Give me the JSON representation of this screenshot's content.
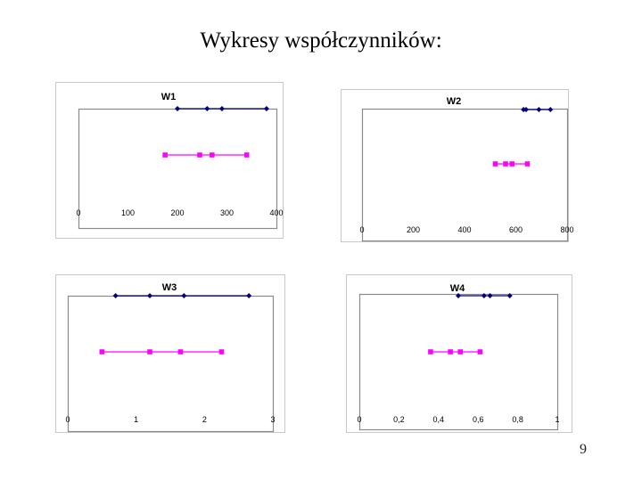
{
  "slide": {
    "title": "Wykresy współczynników:",
    "page_number": "9"
  },
  "colors": {
    "series_top": "#000080",
    "series_bottom": "#ff00ff"
  },
  "chart_data": [
    {
      "id": "p1",
      "type": "scatter",
      "title": "W1",
      "xlim": [
        0,
        400
      ],
      "ticks": [
        0,
        100,
        200,
        300,
        400
      ],
      "tick_labels": [
        "0",
        "100",
        "200",
        "300",
        "400"
      ],
      "grid": false,
      "legend": "none",
      "series": [
        {
          "marker": "diamond",
          "color": "#000080",
          "x": [
            200,
            260,
            290,
            380
          ],
          "y": [
            2,
            2,
            2,
            2
          ]
        },
        {
          "marker": "square",
          "color": "#ff00ff",
          "x": [
            175,
            245,
            270,
            340
          ],
          "y": [
            1,
            1,
            1,
            1
          ]
        }
      ]
    },
    {
      "id": "p2",
      "type": "scatter",
      "title": "W2",
      "xlim": [
        0,
        800
      ],
      "ticks": [
        0,
        200,
        400,
        600,
        800
      ],
      "tick_labels": [
        "0",
        "200",
        "400",
        "600",
        "800"
      ],
      "grid": false,
      "legend": "none",
      "series": [
        {
          "marker": "diamond",
          "color": "#000080",
          "x": [
            630,
            640,
            690,
            735
          ],
          "y": [
            2,
            2,
            2,
            2
          ]
        },
        {
          "marker": "square",
          "color": "#ff00ff",
          "x": [
            520,
            560,
            585,
            645
          ],
          "y": [
            1,
            1,
            1,
            1
          ]
        }
      ]
    },
    {
      "id": "p3",
      "type": "scatter",
      "title": "W3",
      "xlim": [
        0,
        3
      ],
      "ticks": [
        0,
        1,
        2,
        3
      ],
      "tick_labels": [
        "0",
        "1",
        "2",
        "3"
      ],
      "grid": false,
      "legend": "none",
      "series": [
        {
          "marker": "diamond",
          "color": "#000080",
          "x": [
            0.7,
            1.2,
            1.7,
            2.65
          ],
          "y": [
            2,
            2,
            2,
            2
          ]
        },
        {
          "marker": "square",
          "color": "#ff00ff",
          "x": [
            0.5,
            1.2,
            1.65,
            2.25
          ],
          "y": [
            1,
            1,
            1,
            1
          ]
        }
      ]
    },
    {
      "id": "p4",
      "type": "scatter",
      "title": "W4",
      "xlim": [
        0,
        1
      ],
      "ticks": [
        0,
        0.2,
        0.4,
        0.6,
        0.8,
        1
      ],
      "tick_labels": [
        "0",
        "0,2",
        "0,4",
        "0,6",
        "0,8",
        "1"
      ],
      "grid": false,
      "legend": "none",
      "series": [
        {
          "marker": "diamond",
          "color": "#000080",
          "x": [
            0.5,
            0.63,
            0.66,
            0.76
          ],
          "y": [
            2,
            2,
            2,
            2
          ]
        },
        {
          "marker": "square",
          "color": "#ff00ff",
          "x": [
            0.36,
            0.46,
            0.51,
            0.61
          ],
          "y": [
            1,
            1,
            1,
            1
          ]
        }
      ]
    }
  ]
}
